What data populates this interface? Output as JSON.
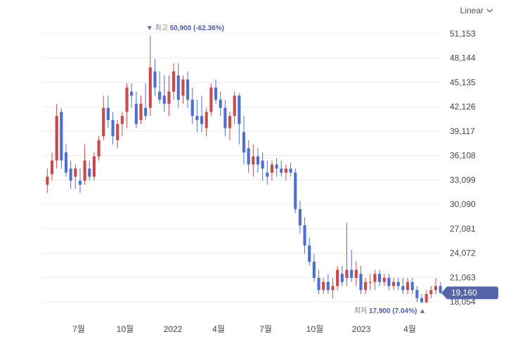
{
  "controls": {
    "scale_label": "Linear",
    "scale_icon": "chevron-down-icon"
  },
  "colors": {
    "up": "#c94a4a",
    "down": "#4d6fd1",
    "grid": "#ececec",
    "badge": "#5565a8",
    "annotation_value": "#4a5aa8"
  },
  "chart_data": {
    "type": "candlestick",
    "title": "",
    "xlabel": "",
    "ylabel": "",
    "y_ticks": [
      "51,153",
      "48,144",
      "45,135",
      "42,126",
      "39,117",
      "36,108",
      "33,099",
      "30,090",
      "27,081",
      "24,072",
      "21,063",
      "18,054"
    ],
    "ylim": [
      17500,
      52000
    ],
    "x_ticks": [
      "7월",
      "10월",
      "2022",
      "4월",
      "7월",
      "10월",
      "2023",
      "4월"
    ],
    "grid": true,
    "current_price": "19,160",
    "high_annotation": {
      "label": "최고",
      "value": "50,900 (-62.36%)",
      "price": 50900,
      "index": 22
    },
    "low_annotation": {
      "label": "최저",
      "value": "17,900 (7.04%)",
      "price": 17900,
      "index": 80
    },
    "candles": [
      {
        "o": 32500,
        "h": 34500,
        "l": 31500,
        "c": 33500
      },
      {
        "o": 33800,
        "h": 36500,
        "l": 33000,
        "c": 35500
      },
      {
        "o": 35500,
        "h": 42500,
        "l": 34500,
        "c": 41000
      },
      {
        "o": 41500,
        "h": 42000,
        "l": 34500,
        "c": 35500
      },
      {
        "o": 36500,
        "h": 37500,
        "l": 33500,
        "c": 34000
      },
      {
        "o": 34500,
        "h": 35500,
        "l": 32000,
        "c": 33000
      },
      {
        "o": 33500,
        "h": 35000,
        "l": 32000,
        "c": 34500
      },
      {
        "o": 33000,
        "h": 34500,
        "l": 31500,
        "c": 32500
      },
      {
        "o": 33000,
        "h": 37500,
        "l": 32500,
        "c": 35500
      },
      {
        "o": 34500,
        "h": 35500,
        "l": 33000,
        "c": 33500
      },
      {
        "o": 33500,
        "h": 36500,
        "l": 33000,
        "c": 36000
      },
      {
        "o": 36000,
        "h": 38500,
        "l": 35500,
        "c": 38000
      },
      {
        "o": 38500,
        "h": 43500,
        "l": 38000,
        "c": 42000
      },
      {
        "o": 42000,
        "h": 43500,
        "l": 39500,
        "c": 40500
      },
      {
        "o": 40500,
        "h": 41500,
        "l": 37500,
        "c": 38500
      },
      {
        "o": 38000,
        "h": 40500,
        "l": 37000,
        "c": 40000
      },
      {
        "o": 40000,
        "h": 41500,
        "l": 38500,
        "c": 41000
      },
      {
        "o": 41500,
        "h": 45000,
        "l": 39500,
        "c": 44500
      },
      {
        "o": 44000,
        "h": 45000,
        "l": 42000,
        "c": 43500
      },
      {
        "o": 42500,
        "h": 44000,
        "l": 39500,
        "c": 40000
      },
      {
        "o": 40500,
        "h": 43500,
        "l": 40000,
        "c": 42500
      },
      {
        "o": 42000,
        "h": 45000,
        "l": 40500,
        "c": 41000
      },
      {
        "o": 42000,
        "h": 50900,
        "l": 41000,
        "c": 47000
      },
      {
        "o": 46500,
        "h": 48000,
        "l": 43500,
        "c": 44500
      },
      {
        "o": 44000,
        "h": 46500,
        "l": 42500,
        "c": 43000
      },
      {
        "o": 43500,
        "h": 46000,
        "l": 41500,
        "c": 42500
      },
      {
        "o": 42500,
        "h": 46000,
        "l": 41000,
        "c": 44000
      },
      {
        "o": 44000,
        "h": 47500,
        "l": 43000,
        "c": 46500
      },
      {
        "o": 46000,
        "h": 47500,
        "l": 42000,
        "c": 43000
      },
      {
        "o": 43500,
        "h": 46000,
        "l": 42500,
        "c": 45500
      },
      {
        "o": 45500,
        "h": 46500,
        "l": 42000,
        "c": 43000
      },
      {
        "o": 43000,
        "h": 44500,
        "l": 40000,
        "c": 41000
      },
      {
        "o": 41000,
        "h": 43000,
        "l": 39000,
        "c": 40500
      },
      {
        "o": 41000,
        "h": 43500,
        "l": 39000,
        "c": 40000
      },
      {
        "o": 39500,
        "h": 42000,
        "l": 38500,
        "c": 41500
      },
      {
        "o": 41500,
        "h": 45000,
        "l": 41000,
        "c": 44500
      },
      {
        "o": 44500,
        "h": 45500,
        "l": 42500,
        "c": 43000
      },
      {
        "o": 43000,
        "h": 44000,
        "l": 41000,
        "c": 42000
      },
      {
        "o": 42000,
        "h": 43000,
        "l": 38500,
        "c": 39500
      },
      {
        "o": 39500,
        "h": 41500,
        "l": 38000,
        "c": 41000
      },
      {
        "o": 41000,
        "h": 44000,
        "l": 40000,
        "c": 43500
      },
      {
        "o": 43500,
        "h": 43800,
        "l": 37500,
        "c": 40000
      },
      {
        "o": 39000,
        "h": 41000,
        "l": 35000,
        "c": 36500
      },
      {
        "o": 37000,
        "h": 38000,
        "l": 34000,
        "c": 35000
      },
      {
        "o": 35000,
        "h": 37500,
        "l": 33500,
        "c": 36000
      },
      {
        "o": 36000,
        "h": 37000,
        "l": 34000,
        "c": 35000
      },
      {
        "o": 35500,
        "h": 36500,
        "l": 33000,
        "c": 34500
      },
      {
        "o": 34000,
        "h": 35500,
        "l": 32500,
        "c": 33500
      },
      {
        "o": 34000,
        "h": 35500,
        "l": 33000,
        "c": 35000
      },
      {
        "o": 35000,
        "h": 35800,
        "l": 33500,
        "c": 34500
      },
      {
        "o": 34500,
        "h": 35500,
        "l": 33500,
        "c": 34000
      },
      {
        "o": 34000,
        "h": 35000,
        "l": 33000,
        "c": 34500
      },
      {
        "o": 34500,
        "h": 35200,
        "l": 33500,
        "c": 34000
      },
      {
        "o": 34000,
        "h": 34500,
        "l": 29000,
        "c": 29500
      },
      {
        "o": 29500,
        "h": 30500,
        "l": 26500,
        "c": 27500
      },
      {
        "o": 27500,
        "h": 28500,
        "l": 24000,
        "c": 25000
      },
      {
        "o": 25000,
        "h": 26000,
        "l": 22500,
        "c": 23000
      },
      {
        "o": 23000,
        "h": 24000,
        "l": 20500,
        "c": 21000
      },
      {
        "o": 21000,
        "h": 22000,
        "l": 19000,
        "c": 19500
      },
      {
        "o": 19500,
        "h": 21000,
        "l": 19000,
        "c": 20500
      },
      {
        "o": 20500,
        "h": 21500,
        "l": 19000,
        "c": 19500
      },
      {
        "o": 19500,
        "h": 21000,
        "l": 18500,
        "c": 20000
      },
      {
        "o": 20000,
        "h": 22500,
        "l": 19500,
        "c": 22000
      },
      {
        "o": 21500,
        "h": 22500,
        "l": 20000,
        "c": 20500
      },
      {
        "o": 21000,
        "h": 27800,
        "l": 20000,
        "c": 22000
      },
      {
        "o": 22000,
        "h": 24500,
        "l": 20500,
        "c": 21000
      },
      {
        "o": 21000,
        "h": 23000,
        "l": 20000,
        "c": 22000
      },
      {
        "o": 21500,
        "h": 22500,
        "l": 19000,
        "c": 19500
      },
      {
        "o": 19500,
        "h": 21000,
        "l": 19000,
        "c": 20500
      },
      {
        "o": 20500,
        "h": 21500,
        "l": 19500,
        "c": 20500
      },
      {
        "o": 20500,
        "h": 22000,
        "l": 19500,
        "c": 21500
      },
      {
        "o": 21500,
        "h": 22000,
        "l": 20000,
        "c": 20500
      },
      {
        "o": 20500,
        "h": 21500,
        "l": 20000,
        "c": 21000
      },
      {
        "o": 21000,
        "h": 21500,
        "l": 19500,
        "c": 20000
      },
      {
        "o": 20000,
        "h": 21000,
        "l": 19500,
        "c": 20500
      },
      {
        "o": 20500,
        "h": 21000,
        "l": 19500,
        "c": 20000
      },
      {
        "o": 20000,
        "h": 21000,
        "l": 19000,
        "c": 19500
      },
      {
        "o": 19500,
        "h": 21000,
        "l": 19000,
        "c": 20500
      },
      {
        "o": 20500,
        "h": 21000,
        "l": 19000,
        "c": 19500
      },
      {
        "o": 19500,
        "h": 20000,
        "l": 18000,
        "c": 18500
      },
      {
        "o": 18500,
        "h": 19000,
        "l": 17900,
        "c": 18000
      },
      {
        "o": 18000,
        "h": 19500,
        "l": 17900,
        "c": 19000
      },
      {
        "o": 19000,
        "h": 20000,
        "l": 18500,
        "c": 19500
      },
      {
        "o": 19500,
        "h": 21000,
        "l": 19000,
        "c": 20000
      },
      {
        "o": 20000,
        "h": 20500,
        "l": 19000,
        "c": 19160
      }
    ]
  }
}
